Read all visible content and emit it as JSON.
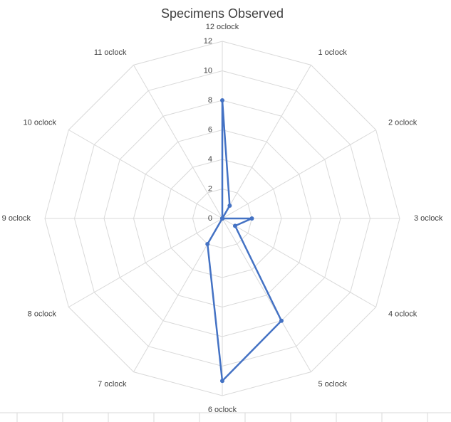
{
  "chart_data": {
    "type": "radar",
    "title": "Specimens Observed",
    "categories": [
      "12 oclock",
      "1 oclock",
      "2 oclock",
      "3 oclock",
      "4 oclock",
      "5 oclock",
      "6 oclock",
      "7 oclock",
      "8 oclock",
      "9 oclock",
      "10 oclock",
      "11 oclock"
    ],
    "values": [
      8,
      1,
      0,
      2,
      1,
      8,
      11,
      2,
      0,
      0,
      0,
      0
    ],
    "color": "#4472c4",
    "ylim": [
      0,
      12
    ],
    "yticks": [
      0,
      2,
      4,
      6,
      8,
      10,
      12
    ],
    "grid": true
  }
}
